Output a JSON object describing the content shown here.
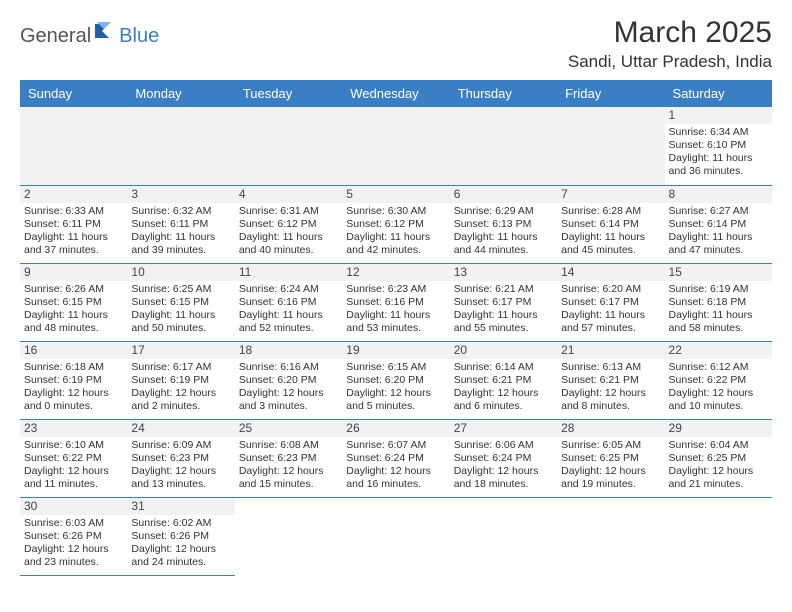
{
  "logo": {
    "part1": "General",
    "part2": "Blue"
  },
  "title": "March 2025",
  "location": "Sandi, Uttar Pradesh, India",
  "headers": [
    "Sunday",
    "Monday",
    "Tuesday",
    "Wednesday",
    "Thursday",
    "Friday",
    "Saturday"
  ],
  "colors": {
    "headerBg": "#3a7fc4",
    "headerText": "#ffffff",
    "dayBg": "#f2f2f2",
    "border": "#3a7fc4",
    "logoAccent": "#3a7fc4"
  },
  "weeks": [
    [
      null,
      null,
      null,
      null,
      null,
      null,
      {
        "n": "1",
        "sr": "Sunrise: 6:34 AM",
        "ss": "Sunset: 6:10 PM",
        "d1": "Daylight: 11 hours",
        "d2": "and 36 minutes."
      }
    ],
    [
      {
        "n": "2",
        "sr": "Sunrise: 6:33 AM",
        "ss": "Sunset: 6:11 PM",
        "d1": "Daylight: 11 hours",
        "d2": "and 37 minutes."
      },
      {
        "n": "3",
        "sr": "Sunrise: 6:32 AM",
        "ss": "Sunset: 6:11 PM",
        "d1": "Daylight: 11 hours",
        "d2": "and 39 minutes."
      },
      {
        "n": "4",
        "sr": "Sunrise: 6:31 AM",
        "ss": "Sunset: 6:12 PM",
        "d1": "Daylight: 11 hours",
        "d2": "and 40 minutes."
      },
      {
        "n": "5",
        "sr": "Sunrise: 6:30 AM",
        "ss": "Sunset: 6:12 PM",
        "d1": "Daylight: 11 hours",
        "d2": "and 42 minutes."
      },
      {
        "n": "6",
        "sr": "Sunrise: 6:29 AM",
        "ss": "Sunset: 6:13 PM",
        "d1": "Daylight: 11 hours",
        "d2": "and 44 minutes."
      },
      {
        "n": "7",
        "sr": "Sunrise: 6:28 AM",
        "ss": "Sunset: 6:14 PM",
        "d1": "Daylight: 11 hours",
        "d2": "and 45 minutes."
      },
      {
        "n": "8",
        "sr": "Sunrise: 6:27 AM",
        "ss": "Sunset: 6:14 PM",
        "d1": "Daylight: 11 hours",
        "d2": "and 47 minutes."
      }
    ],
    [
      {
        "n": "9",
        "sr": "Sunrise: 6:26 AM",
        "ss": "Sunset: 6:15 PM",
        "d1": "Daylight: 11 hours",
        "d2": "and 48 minutes."
      },
      {
        "n": "10",
        "sr": "Sunrise: 6:25 AM",
        "ss": "Sunset: 6:15 PM",
        "d1": "Daylight: 11 hours",
        "d2": "and 50 minutes."
      },
      {
        "n": "11",
        "sr": "Sunrise: 6:24 AM",
        "ss": "Sunset: 6:16 PM",
        "d1": "Daylight: 11 hours",
        "d2": "and 52 minutes."
      },
      {
        "n": "12",
        "sr": "Sunrise: 6:23 AM",
        "ss": "Sunset: 6:16 PM",
        "d1": "Daylight: 11 hours",
        "d2": "and 53 minutes."
      },
      {
        "n": "13",
        "sr": "Sunrise: 6:21 AM",
        "ss": "Sunset: 6:17 PM",
        "d1": "Daylight: 11 hours",
        "d2": "and 55 minutes."
      },
      {
        "n": "14",
        "sr": "Sunrise: 6:20 AM",
        "ss": "Sunset: 6:17 PM",
        "d1": "Daylight: 11 hours",
        "d2": "and 57 minutes."
      },
      {
        "n": "15",
        "sr": "Sunrise: 6:19 AM",
        "ss": "Sunset: 6:18 PM",
        "d1": "Daylight: 11 hours",
        "d2": "and 58 minutes."
      }
    ],
    [
      {
        "n": "16",
        "sr": "Sunrise: 6:18 AM",
        "ss": "Sunset: 6:19 PM",
        "d1": "Daylight: 12 hours",
        "d2": "and 0 minutes."
      },
      {
        "n": "17",
        "sr": "Sunrise: 6:17 AM",
        "ss": "Sunset: 6:19 PM",
        "d1": "Daylight: 12 hours",
        "d2": "and 2 minutes."
      },
      {
        "n": "18",
        "sr": "Sunrise: 6:16 AM",
        "ss": "Sunset: 6:20 PM",
        "d1": "Daylight: 12 hours",
        "d2": "and 3 minutes."
      },
      {
        "n": "19",
        "sr": "Sunrise: 6:15 AM",
        "ss": "Sunset: 6:20 PM",
        "d1": "Daylight: 12 hours",
        "d2": "and 5 minutes."
      },
      {
        "n": "20",
        "sr": "Sunrise: 6:14 AM",
        "ss": "Sunset: 6:21 PM",
        "d1": "Daylight: 12 hours",
        "d2": "and 6 minutes."
      },
      {
        "n": "21",
        "sr": "Sunrise: 6:13 AM",
        "ss": "Sunset: 6:21 PM",
        "d1": "Daylight: 12 hours",
        "d2": "and 8 minutes."
      },
      {
        "n": "22",
        "sr": "Sunrise: 6:12 AM",
        "ss": "Sunset: 6:22 PM",
        "d1": "Daylight: 12 hours",
        "d2": "and 10 minutes."
      }
    ],
    [
      {
        "n": "23",
        "sr": "Sunrise: 6:10 AM",
        "ss": "Sunset: 6:22 PM",
        "d1": "Daylight: 12 hours",
        "d2": "and 11 minutes."
      },
      {
        "n": "24",
        "sr": "Sunrise: 6:09 AM",
        "ss": "Sunset: 6:23 PM",
        "d1": "Daylight: 12 hours",
        "d2": "and 13 minutes."
      },
      {
        "n": "25",
        "sr": "Sunrise: 6:08 AM",
        "ss": "Sunset: 6:23 PM",
        "d1": "Daylight: 12 hours",
        "d2": "and 15 minutes."
      },
      {
        "n": "26",
        "sr": "Sunrise: 6:07 AM",
        "ss": "Sunset: 6:24 PM",
        "d1": "Daylight: 12 hours",
        "d2": "and 16 minutes."
      },
      {
        "n": "27",
        "sr": "Sunrise: 6:06 AM",
        "ss": "Sunset: 6:24 PM",
        "d1": "Daylight: 12 hours",
        "d2": "and 18 minutes."
      },
      {
        "n": "28",
        "sr": "Sunrise: 6:05 AM",
        "ss": "Sunset: 6:25 PM",
        "d1": "Daylight: 12 hours",
        "d2": "and 19 minutes."
      },
      {
        "n": "29",
        "sr": "Sunrise: 6:04 AM",
        "ss": "Sunset: 6:25 PM",
        "d1": "Daylight: 12 hours",
        "d2": "and 21 minutes."
      }
    ],
    [
      {
        "n": "30",
        "sr": "Sunrise: 6:03 AM",
        "ss": "Sunset: 6:26 PM",
        "d1": "Daylight: 12 hours",
        "d2": "and 23 minutes."
      },
      {
        "n": "31",
        "sr": "Sunrise: 6:02 AM",
        "ss": "Sunset: 6:26 PM",
        "d1": "Daylight: 12 hours",
        "d2": "and 24 minutes."
      },
      null,
      null,
      null,
      null,
      null
    ]
  ]
}
